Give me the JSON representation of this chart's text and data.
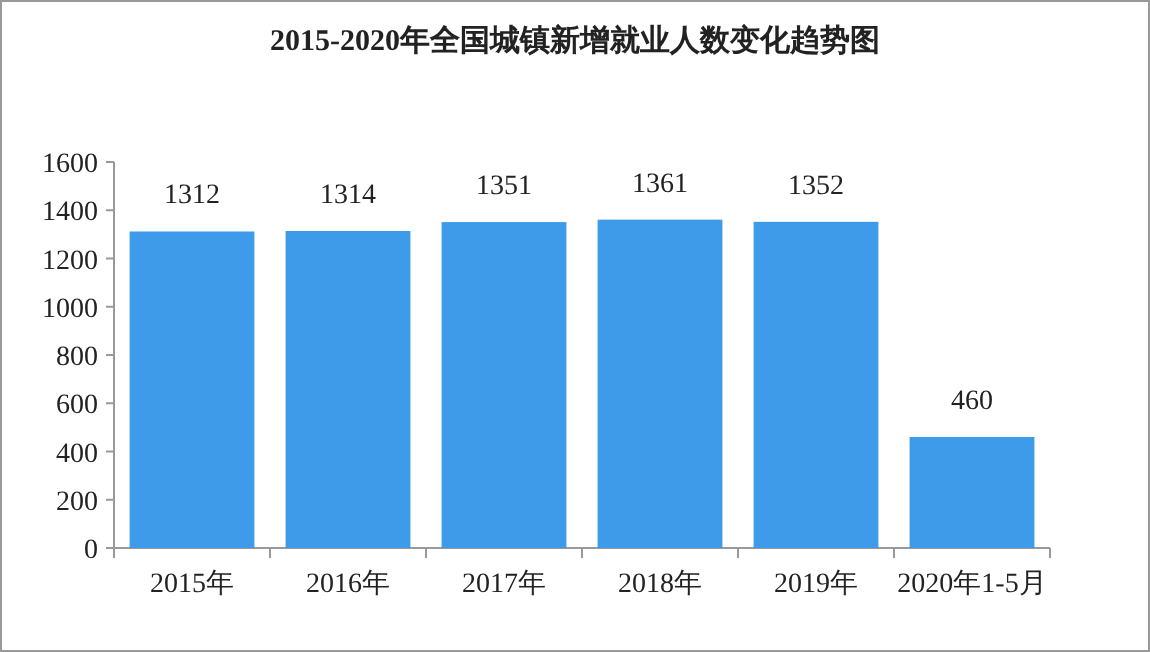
{
  "chart_data": {
    "type": "bar",
    "title": "2015-2020年全国城镇新增就业人数变化趋势图",
    "categories": [
      "2015年",
      "2016年",
      "2017年",
      "2018年",
      "2019年",
      "2020年1-5月"
    ],
    "values": [
      1312,
      1314,
      1351,
      1361,
      1352,
      460
    ],
    "color": "#3d9be9",
    "ylim": [
      0,
      1600
    ],
    "yticks": [
      0,
      200,
      400,
      600,
      800,
      1000,
      1200,
      1400,
      1600
    ],
    "data_labels": true
  }
}
